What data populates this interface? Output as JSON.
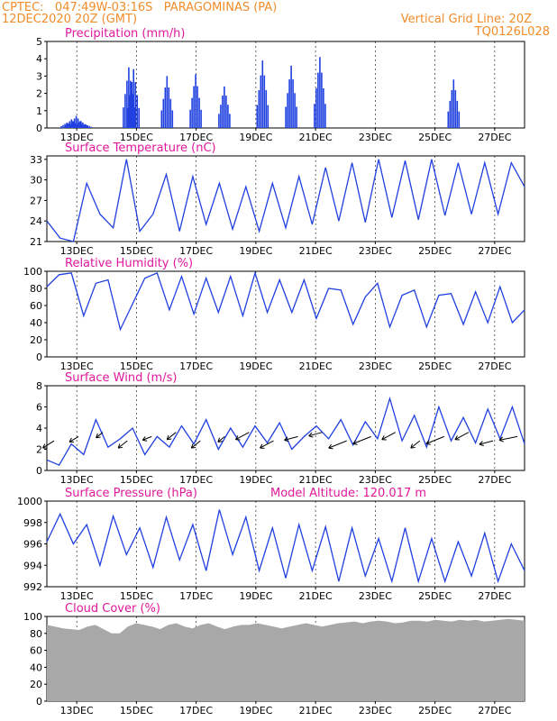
{
  "header": {
    "line1_left": "CPTEC:   047:49W-03:16S   PARAGOMINAS (PA)",
    "line2_left": "12DEC2020 20Z (GMT)",
    "line1_right": "Vertical Grid Line: 20Z",
    "line2_right": "TQ0126L028"
  },
  "colors": {
    "header": "#f08c2a",
    "title": "#e0189a",
    "series": "#2040e0",
    "cloud": "#a8a8a8",
    "wind_arrow": "#000000",
    "axis": "#000000",
    "grid": "#000000"
  },
  "x_ticks": [
    "13DEC",
    "15DEC",
    "17DEC",
    "19DEC",
    "21DEC",
    "23DEC",
    "25DEC",
    "27DEC"
  ],
  "chart_data": [
    {
      "id": "precip",
      "type": "bar",
      "title": "Precipitation (mm/h)",
      "ylim": [
        0,
        5
      ],
      "yticks": [
        0,
        1,
        2,
        3,
        4,
        5
      ],
      "grid": true,
      "values": [
        [
          0.3,
          0.1
        ],
        [
          0.5,
          0.2
        ],
        [
          0.7,
          0.3
        ],
        [
          0.4,
          0.1
        ],
        [
          0.2,
          0.1
        ],
        [
          3.5,
          0.3
        ],
        [
          3.4,
          0.3
        ],
        [
          3.0,
          0.2
        ],
        [
          3.1,
          0.3
        ],
        [
          2.4,
          0.2
        ],
        [
          3.9,
          0.3
        ],
        [
          3.6,
          0.3
        ],
        [
          4.1,
          0.3
        ],
        [
          2.8,
          0.2
        ]
      ],
      "label": "precip"
    },
    {
      "id": "temp",
      "type": "line",
      "title": "Surface Temperature (nC)",
      "ylim": [
        21,
        33.5
      ],
      "yticks": [
        21,
        24,
        27,
        30,
        33
      ],
      "grid": true,
      "series": [
        {
          "values": [
            24.0,
            21.5,
            21.0,
            29.5,
            25.0,
            23.0,
            33.0,
            22.5,
            25.0,
            30.8,
            22.5,
            30.5,
            23.5,
            29.5,
            22.8,
            29.0,
            22.5,
            29.5,
            23.0,
            30.5,
            23.5,
            31.8,
            24.0,
            32.5,
            23.8,
            33.0,
            24.5,
            32.8,
            24.2,
            33.0,
            24.8,
            32.5,
            25.0,
            32.5,
            25.0,
            32.5,
            29.0
          ]
        }
      ]
    },
    {
      "id": "rh",
      "type": "line",
      "title": "Relative Humidity (%)",
      "ylim": [
        0,
        100
      ],
      "yticks": [
        0,
        20,
        40,
        60,
        80,
        100
      ],
      "grid": true,
      "series": [
        {
          "values": [
            82,
            96,
            98,
            48,
            86,
            90,
            32,
            62,
            92,
            98,
            55,
            94,
            50,
            92,
            52,
            94,
            48,
            98,
            52,
            90,
            52,
            90,
            45,
            80,
            78,
            38,
            70,
            86,
            35,
            72,
            78,
            35,
            72,
            74,
            38,
            76,
            40,
            82,
            40,
            55
          ]
        }
      ]
    },
    {
      "id": "wind",
      "type": "line",
      "title": "Surface Wind (m/s)",
      "ylim": [
        0,
        8
      ],
      "yticks": [
        0,
        2,
        4,
        6,
        8
      ],
      "grid": true,
      "series": [
        {
          "values": [
            1.0,
            0.5,
            2.5,
            1.5,
            4.8,
            2.2,
            3.0,
            4.0,
            1.5,
            3.2,
            2.2,
            4.2,
            2.5,
            4.8,
            2.0,
            4.0,
            2.2,
            4.2,
            2.6,
            4.5,
            2.0,
            3.2,
            4.2,
            3.0,
            4.8,
            2.4,
            4.6,
            3.0,
            6.8,
            2.8,
            5.2,
            2.2,
            6.0,
            2.8,
            5.0,
            2.6,
            5.8,
            3.0,
            6.0,
            2.5
          ]
        }
      ],
      "vectors": [
        [
          -2.5,
          -2
        ],
        [
          -2,
          -1.5
        ],
        [
          -1.5,
          -1.5
        ],
        [
          -2,
          -2
        ],
        [
          -2,
          -1
        ],
        [
          -2,
          -2
        ],
        [
          -2,
          -2
        ],
        [
          -1.5,
          -1.5
        ],
        [
          -3,
          -2
        ],
        [
          -3,
          -2
        ],
        [
          -3,
          -1
        ],
        [
          -3,
          -1
        ],
        [
          -4,
          -2
        ],
        [
          -4,
          -2
        ],
        [
          -3,
          -2
        ],
        [
          -2,
          -2
        ],
        [
          -4,
          -2
        ],
        [
          -3,
          -2
        ],
        [
          -3,
          -1
        ],
        [
          -4,
          -1
        ]
      ]
    },
    {
      "id": "press",
      "type": "line",
      "title": "Surface Pressure (hPa)",
      "subtitle": "Model Altitude: 120.017 m",
      "ylim": [
        992,
        1000
      ],
      "yticks": [
        992,
        994,
        996,
        998,
        1000
      ],
      "grid": true,
      "series": [
        {
          "values": [
            996.2,
            998.8,
            996.0,
            997.8,
            994.0,
            998.6,
            995.0,
            997.5,
            993.8,
            998.5,
            994.5,
            997.8,
            993.5,
            999.2,
            995.0,
            998.5,
            993.5,
            997.5,
            992.8,
            997.8,
            993.5,
            997.6,
            992.5,
            997.5,
            993.0,
            996.5,
            992.5,
            997.5,
            992.5,
            996.5,
            992.5,
            996.2,
            993.0,
            997.0,
            992.5,
            996.0,
            993.5
          ]
        }
      ]
    },
    {
      "id": "cloud",
      "type": "area",
      "title": "Cloud Cover (%)",
      "ylim": [
        0,
        100
      ],
      "yticks": [
        0,
        20,
        40,
        60,
        80,
        100
      ],
      "grid": true,
      "values": [
        90,
        88,
        86,
        85,
        84,
        88,
        90,
        85,
        80,
        80,
        88,
        92,
        90,
        88,
        85,
        90,
        92,
        88,
        86,
        90,
        92,
        88,
        85,
        88,
        90,
        90,
        92,
        90,
        88,
        86,
        88,
        90,
        92,
        90,
        88,
        90,
        92,
        93,
        94,
        92,
        94,
        95,
        94,
        92,
        93,
        95,
        95,
        94,
        96,
        95,
        94,
        96,
        95,
        96,
        94,
        95,
        96,
        97,
        96,
        95
      ]
    }
  ]
}
